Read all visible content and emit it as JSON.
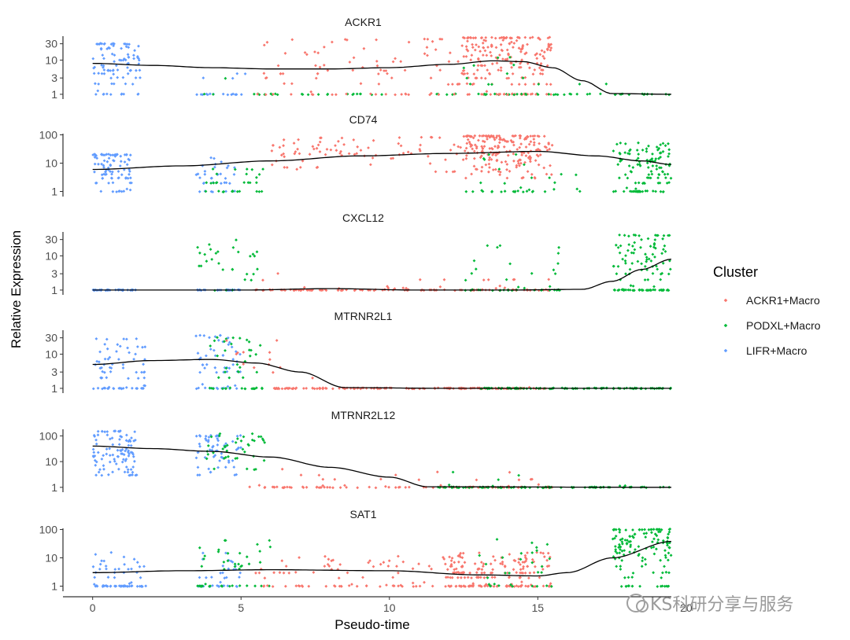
{
  "chart_data": {
    "type": "scatter",
    "xlabel": "Pseudo-time",
    "ylabel": "Relative Expression",
    "xlim": [
      -1,
      19.5
    ],
    "x_ticks": [
      0,
      5,
      10,
      15,
      20
    ],
    "x_tick_labels": [
      "0",
      "5",
      "10",
      "15",
      "20"
    ],
    "y_scale": "log10",
    "legend": {
      "title": "Cluster",
      "position": "right",
      "entries": [
        {
          "name": "ACKR1+Macro",
          "color": "#F8766D"
        },
        {
          "name": "PODXL+Macro",
          "color": "#00BA38"
        },
        {
          "name": "LIFR+Macro",
          "color": "#619CFF"
        }
      ]
    },
    "panels": [
      {
        "gene": "ACKR1",
        "ylim": [
          0.85,
          50
        ],
        "y_ticks": [
          1,
          3,
          10,
          30
        ],
        "y_tick_labels": [
          "1",
          "3",
          "10",
          "30"
        ],
        "trend": [
          [
            0,
            8
          ],
          [
            2,
            7
          ],
          [
            4,
            6
          ],
          [
            6,
            5.5
          ],
          [
            8,
            5.5
          ],
          [
            10,
            6
          ],
          [
            12,
            7.5
          ],
          [
            13.5,
            9.5
          ],
          [
            14.5,
            9
          ],
          [
            15.5,
            6
          ],
          [
            16.5,
            2.5
          ],
          [
            17.5,
            1.05
          ],
          [
            19.5,
            1
          ]
        ],
        "clusters": [
          {
            "name": "LIFR+Macro",
            "x": [
              0,
              1.6
            ],
            "y": [
              1,
              30
            ],
            "center": 8,
            "n": 95,
            "floor": 0.05
          },
          {
            "name": "LIFR+Macro",
            "x": [
              3.5,
              5.3
            ],
            "y": [
              1,
              20
            ],
            "center": 4,
            "n": 18,
            "floor": 0.75
          },
          {
            "name": "PODXL+Macro",
            "x": [
              3.5,
              19.5
            ],
            "y": [
              1,
              10
            ],
            "center": 1,
            "n": 60,
            "floor": 0.9
          },
          {
            "name": "ACKR1+Macro",
            "x": [
              5.5,
              12.5
            ],
            "y": [
              1,
              40
            ],
            "center": 6,
            "n": 95,
            "floor": 0.15
          },
          {
            "name": "ACKR1+Macro",
            "x": [
              12.5,
              15.5
            ],
            "y": [
              1,
              45
            ],
            "center": 12,
            "n": 210,
            "floor": 0.12
          },
          {
            "name": "PODXL+Macro",
            "x": [
              12.5,
              16
            ],
            "y": [
              1,
              12
            ],
            "center": 3,
            "n": 25,
            "floor": 0.3
          }
        ]
      },
      {
        "gene": "CD74",
        "ylim": [
          0.8,
          110
        ],
        "y_ticks": [
          1,
          10,
          100
        ],
        "y_tick_labels": [
          "1",
          "10",
          "100"
        ],
        "trend": [
          [
            0,
            6
          ],
          [
            3,
            8
          ],
          [
            6,
            12
          ],
          [
            9,
            18
          ],
          [
            12,
            22
          ],
          [
            15,
            26
          ],
          [
            17,
            18
          ],
          [
            18.5,
            12
          ],
          [
            19.5,
            9
          ]
        ],
        "clusters": [
          {
            "name": "LIFR+Macro",
            "x": [
              0,
              1.3
            ],
            "y": [
              1,
              20
            ],
            "center": 7,
            "n": 90,
            "floor": 0.05
          },
          {
            "name": "LIFR+Macro",
            "x": [
              3.5,
              4.8
            ],
            "y": [
              1,
              15
            ],
            "center": 4,
            "n": 35,
            "floor": 0.2
          },
          {
            "name": "PODXL+Macro",
            "x": [
              3.8,
              5.8
            ],
            "y": [
              1,
              6
            ],
            "center": 2,
            "n": 30,
            "floor": 0.45
          },
          {
            "name": "ACKR1+Macro",
            "x": [
              6,
              12.5
            ],
            "y": [
              5,
              80
            ],
            "center": 25,
            "n": 85,
            "floor": 0
          },
          {
            "name": "ACKR1+Macro",
            "x": [
              12.5,
              15.5
            ],
            "y": [
              3,
              90
            ],
            "center": 30,
            "n": 200,
            "floor": 0
          },
          {
            "name": "PODXL+Macro",
            "x": [
              12.5,
              16.5
            ],
            "y": [
              1,
              20
            ],
            "center": 5,
            "n": 35,
            "floor": 0.3
          },
          {
            "name": "PODXL+Macro",
            "x": [
              17.5,
              19.5
            ],
            "y": [
              1,
              50
            ],
            "center": 10,
            "n": 120,
            "floor": 0.2
          }
        ]
      },
      {
        "gene": "CXCL12",
        "ylim": [
          0.85,
          50
        ],
        "y_ticks": [
          1,
          3,
          10,
          30
        ],
        "y_tick_labels": [
          "1",
          "3",
          "10",
          "30"
        ],
        "trend": [
          [
            0,
            1
          ],
          [
            5,
            1
          ],
          [
            8,
            1.1
          ],
          [
            11,
            1
          ],
          [
            14,
            1
          ],
          [
            16.5,
            1.05
          ],
          [
            17.5,
            1.8
          ],
          [
            18.5,
            4
          ],
          [
            19.5,
            8
          ]
        ],
        "clusters": [
          {
            "name": "LIFR+Macro",
            "x": [
              0,
              1.5
            ],
            "y": [
              1,
              1
            ],
            "center": 1,
            "n": 35,
            "floor": 1
          },
          {
            "name": "LIFR+Macro",
            "x": [
              3.5,
              5
            ],
            "y": [
              1,
              1
            ],
            "center": 1,
            "n": 25,
            "floor": 1
          },
          {
            "name": "PODXL+Macro",
            "x": [
              3.5,
              5.8
            ],
            "y": [
              2,
              30
            ],
            "center": 8,
            "n": 30,
            "floor": 0.15
          },
          {
            "name": "ACKR1+Macro",
            "x": [
              5.5,
              15.5
            ],
            "y": [
              1,
              4
            ],
            "center": 1.5,
            "n": 120,
            "floor": 0.75
          },
          {
            "name": "PODXL+Macro",
            "x": [
              12.5,
              16
            ],
            "y": [
              1,
              20
            ],
            "center": 2,
            "n": 40,
            "floor": 0.35
          },
          {
            "name": "PODXL+Macro",
            "x": [
              17.5,
              19.5
            ],
            "y": [
              1,
              40
            ],
            "center": 8,
            "n": 120,
            "floor": 0.25
          }
        ]
      },
      {
        "gene": "MTRNR2L1",
        "ylim": [
          0.85,
          50
        ],
        "y_ticks": [
          1,
          3,
          10,
          30
        ],
        "y_tick_labels": [
          "1",
          "3",
          "10",
          "30"
        ],
        "trend": [
          [
            0,
            5
          ],
          [
            2,
            6.5
          ],
          [
            4,
            7
          ],
          [
            5.5,
            5.5
          ],
          [
            7,
            3
          ],
          [
            8.5,
            1.05
          ],
          [
            12,
            1
          ],
          [
            19.5,
            1
          ]
        ],
        "clusters": [
          {
            "name": "LIFR+Macro",
            "x": [
              0,
              1.8
            ],
            "y": [
              1,
              28
            ],
            "center": 6,
            "n": 75,
            "floor": 0.2
          },
          {
            "name": "LIFR+Macro",
            "x": [
              3.5,
              5
            ],
            "y": [
              1,
              35
            ],
            "center": 7,
            "n": 55,
            "floor": 0.2
          },
          {
            "name": "PODXL+Macro",
            "x": [
              3.8,
              5.8
            ],
            "y": [
              1,
              30
            ],
            "center": 6,
            "n": 45,
            "floor": 0.3
          },
          {
            "name": "ACKR1+Macro",
            "x": [
              4.5,
              6.5
            ],
            "y": [
              3,
              25
            ],
            "center": 8,
            "n": 12,
            "floor": 0
          },
          {
            "name": "ACKR1+Macro",
            "x": [
              6,
              15.5
            ],
            "y": [
              1,
              2
            ],
            "center": 1,
            "n": 140,
            "floor": 0.95
          },
          {
            "name": "PODXL+Macro",
            "x": [
              13,
              19.5
            ],
            "y": [
              1,
              1
            ],
            "center": 1,
            "n": 90,
            "floor": 1
          }
        ]
      },
      {
        "gene": "MTRNR2L12",
        "ylim": [
          0.8,
          180
        ],
        "y_ticks": [
          1,
          10,
          100
        ],
        "y_tick_labels": [
          "1",
          "10",
          "100"
        ],
        "trend": [
          [
            0,
            40
          ],
          [
            2,
            32
          ],
          [
            4,
            25
          ],
          [
            6,
            15
          ],
          [
            8,
            6
          ],
          [
            10,
            2.5
          ],
          [
            11.3,
            1.05
          ],
          [
            19.5,
            1
          ]
        ],
        "clusters": [
          {
            "name": "LIFR+Macro",
            "x": [
              0,
              1.5
            ],
            "y": [
              3,
              150
            ],
            "center": 25,
            "n": 100,
            "floor": 0
          },
          {
            "name": "LIFR+Macro",
            "x": [
              3.5,
              5
            ],
            "y": [
              3,
              100
            ],
            "center": 25,
            "n": 60,
            "floor": 0
          },
          {
            "name": "PODXL+Macro",
            "x": [
              3.8,
              5.8
            ],
            "y": [
              5,
              120
            ],
            "center": 30,
            "n": 40,
            "floor": 0
          },
          {
            "name": "ACKR1+Macro",
            "x": [
              5,
              15.5
            ],
            "y": [
              1,
              5
            ],
            "center": 1.5,
            "n": 100,
            "floor": 0.75
          },
          {
            "name": "PODXL+Macro",
            "x": [
              11.5,
              19.5
            ],
            "y": [
              1,
              6
            ],
            "center": 1,
            "n": 90,
            "floor": 0.85
          }
        ]
      },
      {
        "gene": "SAT1",
        "ylim": [
          0.8,
          110
        ],
        "y_ticks": [
          1,
          10,
          100
        ],
        "y_tick_labels": [
          "1",
          "10",
          "100"
        ],
        "trend": [
          [
            0,
            3
          ],
          [
            3,
            3.5
          ],
          [
            6,
            3.8
          ],
          [
            10,
            3.5
          ],
          [
            13,
            2.5
          ],
          [
            15,
            2.3
          ],
          [
            16,
            3
          ],
          [
            17.5,
            10
          ],
          [
            19.5,
            38
          ]
        ],
        "clusters": [
          {
            "name": "LIFR+Macro",
            "x": [
              0,
              1.8
            ],
            "y": [
              1,
              30
            ],
            "center": 2.5,
            "n": 70,
            "floor": 0.45
          },
          {
            "name": "LIFR+Macro",
            "x": [
              3.5,
              5
            ],
            "y": [
              1,
              15
            ],
            "center": 3,
            "n": 35,
            "floor": 0.35
          },
          {
            "name": "PODXL+Macro",
            "x": [
              3.5,
              6
            ],
            "y": [
              1,
              40
            ],
            "center": 8,
            "n": 45,
            "floor": 0.3
          },
          {
            "name": "ACKR1+Macro",
            "x": [
              5.5,
              12.5
            ],
            "y": [
              1,
              12
            ],
            "center": 3,
            "n": 90,
            "floor": 0.3
          },
          {
            "name": "ACKR1+Macro",
            "x": [
              12,
              15.5
            ],
            "y": [
              1,
              15
            ],
            "center": 3,
            "n": 180,
            "floor": 0.2
          },
          {
            "name": "PODXL+Macro",
            "x": [
              13,
              15.5
            ],
            "y": [
              1,
              45
            ],
            "center": 5,
            "n": 30,
            "floor": 0.1
          },
          {
            "name": "PODXL+Macro",
            "x": [
              17.5,
              19.5
            ],
            "y": [
              2,
              100
            ],
            "center": 30,
            "n": 140,
            "floor": 0.1
          }
        ]
      }
    ]
  },
  "watermark": {
    "text": "KS科研分享与服务"
  }
}
